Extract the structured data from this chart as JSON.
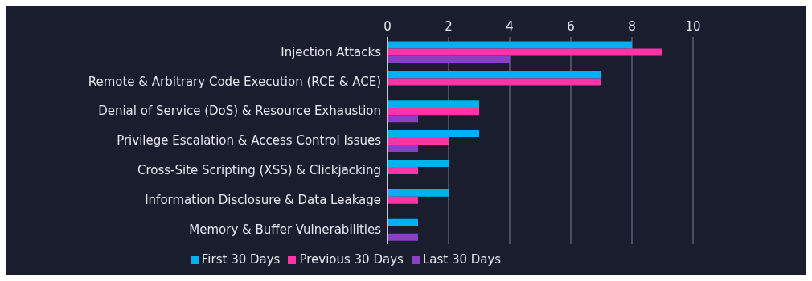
{
  "chart_data": {
    "type": "bar",
    "orientation": "horizontal",
    "categories": [
      "Injection Attacks",
      "Remote & Arbitrary Code Execution (RCE & ACE)",
      "Denial of Service (DoS) & Resource Exhaustion",
      "Privilege Escalation & Access Control Issues",
      "Cross-Site Scripting (XSS) & Clickjacking",
      "Information Disclosure & Data Leakage",
      "Memory & Buffer Vulnerabilities"
    ],
    "series": [
      {
        "name": "First 30 Days",
        "color": "#00b0f0",
        "values": [
          8,
          7,
          3,
          3,
          2,
          2,
          1
        ]
      },
      {
        "name": "Previous 30 Days",
        "color": "#ff33a8",
        "values": [
          9,
          7,
          3,
          2,
          1,
          1,
          null
        ]
      },
      {
        "name": "Last 30 Days",
        "color": "#8a3fc8",
        "values": [
          4,
          null,
          1,
          1,
          null,
          null,
          1
        ]
      }
    ],
    "xlim": [
      0,
      10
    ],
    "xticks": [
      0,
      2,
      4,
      6,
      8,
      10
    ],
    "grid": "x",
    "legend": "bottom"
  }
}
